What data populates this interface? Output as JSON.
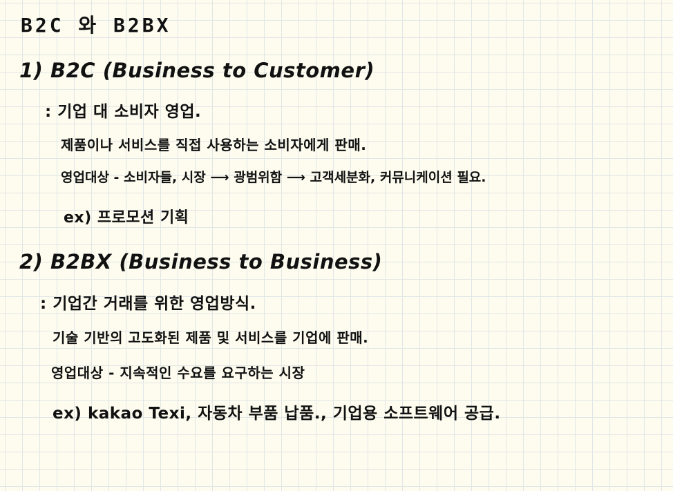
{
  "title": "B2C 와 B2BX",
  "section1": {
    "heading": "1) B2C (Business to Customer)",
    "definition": ": 기업 대 소비자 영업.",
    "line1": "제품이나 서비스를 직접 사용하는 소비자에게 판매.",
    "line2": "영업대상 - 소비자들, 시장 ⟶ 광범위함 ⟶ 고객세분화, 커뮤니케이션 필요.",
    "example": "ex) 프로모션 기획"
  },
  "section2": {
    "heading": "2) B2BX (Business to Business)",
    "definition": ": 기업간 거래를 위한 영업방식.",
    "line1": "기술 기반의 고도화된 제품 및 서비스를 기업에 판매.",
    "line2": "영업대상 -   지속적인 수요를 요구하는 시장",
    "example": "ex) kakao Texi,  자동차 부품 납품.,  기업용 소프트웨어 공급."
  }
}
